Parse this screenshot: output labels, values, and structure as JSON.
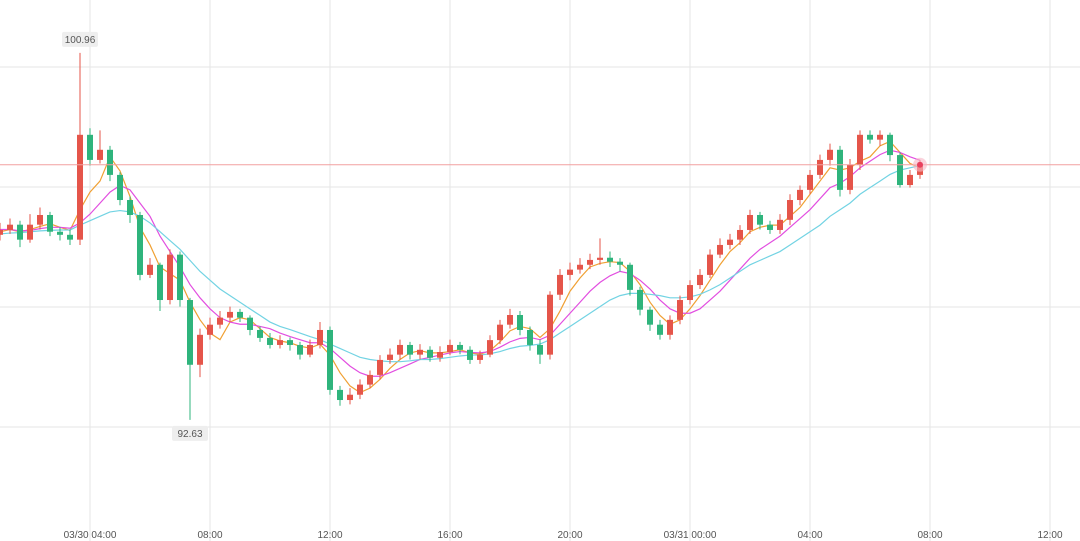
{
  "chart_data": {
    "type": "candlestick",
    "xlim": [
      0,
      108
    ],
    "xticks": [
      {
        "value": 9,
        "label": "03/30 04:00"
      },
      {
        "value": 21,
        "label": "08:00"
      },
      {
        "value": 33,
        "label": "12:00"
      },
      {
        "value": 45,
        "label": "16:00"
      },
      {
        "value": 57,
        "label": "20:00"
      },
      {
        "value": 69,
        "label": "03/31 00:00"
      },
      {
        "value": 81,
        "label": "04:00"
      },
      {
        "value": 93,
        "label": "08:00"
      },
      {
        "value": 105,
        "label": "12:00"
      }
    ],
    "ylim": [
      89.88,
      102.16
    ],
    "grid": true,
    "up_color": "#e5554a",
    "down_color": "#2fb47c",
    "open": [
      96.83,
      96.94,
      97.06,
      96.72,
      97.06,
      97.28,
      96.9,
      96.83,
      96.72,
      99.1,
      98.53,
      98.76,
      98.19,
      97.62,
      97.28,
      95.92,
      96.15,
      95.35,
      96.38,
      95.35,
      93.88,
      94.56,
      94.79,
      94.95,
      95.08,
      94.95,
      94.67,
      94.49,
      94.33,
      94.44,
      94.33,
      94.11,
      94.33,
      94.67,
      93.31,
      93.08,
      93.2,
      93.43,
      93.65,
      93.99,
      94.11,
      94.33,
      94.11,
      94.22,
      94.04,
      94.17,
      94.33,
      94.22,
      93.99,
      94.11,
      94.44,
      94.79,
      95.01,
      94.67,
      94.33,
      94.11,
      95.47,
      95.92,
      96.04,
      96.15,
      96.26,
      96.31,
      96.22,
      96.15,
      95.58,
      95.13,
      94.79,
      94.56,
      94.9,
      95.35,
      95.69,
      95.92,
      96.38,
      96.6,
      96.72,
      96.94,
      97.28,
      97.06,
      96.94,
      97.17,
      97.62,
      97.85,
      98.19,
      98.53,
      98.76,
      97.85,
      98.42,
      99.1,
      98.99,
      99.1,
      98.64,
      97.96,
      98.19
    ],
    "high": [
      97.1,
      97.2,
      97.15,
      97.3,
      97.45,
      97.35,
      97.0,
      96.95,
      100.96,
      99.25,
      99.2,
      98.85,
      98.25,
      97.7,
      97.35,
      96.3,
      96.2,
      96.5,
      96.45,
      95.4,
      94.7,
      94.95,
      95.1,
      95.2,
      95.15,
      95.0,
      94.75,
      94.6,
      94.55,
      94.5,
      94.4,
      94.45,
      94.85,
      94.75,
      93.4,
      93.35,
      93.55,
      93.75,
      94.1,
      94.25,
      94.45,
      94.4,
      94.35,
      94.3,
      94.3,
      94.45,
      94.4,
      94.3,
      94.2,
      94.55,
      94.9,
      95.15,
      95.1,
      94.75,
      94.45,
      95.55,
      96.05,
      96.2,
      96.3,
      96.4,
      96.75,
      96.45,
      96.3,
      96.2,
      95.65,
      95.2,
      94.9,
      95.0,
      95.45,
      95.8,
      96.05,
      96.5,
      96.75,
      96.85,
      97.05,
      97.4,
      97.35,
      97.15,
      97.3,
      97.75,
      97.95,
      98.3,
      98.65,
      98.9,
      98.85,
      98.55,
      99.2,
      99.2,
      99.2,
      99.15,
      98.7,
      98.3,
      98.53
    ],
    "low": [
      96.7,
      96.85,
      96.55,
      96.65,
      96.95,
      96.8,
      96.7,
      96.6,
      96.6,
      98.4,
      98.45,
      98.05,
      97.5,
      97.1,
      95.8,
      95.85,
      95.1,
      95.25,
      95.2,
      92.63,
      93.6,
      94.45,
      94.7,
      94.85,
      94.85,
      94.55,
      94.4,
      94.25,
      94.25,
      94.2,
      94.0,
      94.05,
      94.25,
      93.2,
      92.95,
      92.98,
      93.1,
      93.35,
      93.55,
      93.9,
      94.0,
      94.0,
      94.0,
      93.95,
      93.95,
      94.1,
      94.12,
      93.9,
      93.9,
      94.05,
      94.35,
      94.7,
      94.55,
      94.2,
      93.9,
      94.0,
      95.35,
      95.8,
      95.95,
      96.05,
      96.15,
      96.1,
      96.0,
      95.45,
      95.0,
      94.65,
      94.45,
      94.45,
      94.8,
      95.25,
      95.6,
      95.85,
      96.3,
      96.5,
      96.6,
      96.85,
      96.95,
      96.85,
      96.85,
      97.05,
      97.5,
      97.75,
      98.1,
      98.4,
      97.7,
      97.75,
      98.3,
      98.9,
      98.85,
      98.5,
      97.9,
      97.9,
      98.1
    ],
    "close": [
      96.94,
      97.06,
      96.72,
      97.06,
      97.28,
      96.9,
      96.83,
      96.72,
      99.1,
      98.53,
      98.76,
      98.19,
      97.62,
      97.28,
      95.92,
      96.15,
      95.35,
      96.38,
      95.35,
      93.88,
      94.56,
      94.79,
      94.95,
      95.08,
      94.95,
      94.67,
      94.49,
      94.33,
      94.44,
      94.33,
      94.11,
      94.33,
      94.67,
      93.31,
      93.08,
      93.2,
      93.43,
      93.65,
      93.99,
      94.11,
      94.33,
      94.11,
      94.22,
      94.04,
      94.17,
      94.33,
      94.22,
      93.99,
      94.11,
      94.44,
      94.79,
      95.01,
      94.67,
      94.33,
      94.11,
      95.47,
      95.92,
      96.04,
      96.15,
      96.26,
      96.31,
      96.22,
      96.15,
      95.58,
      95.13,
      94.79,
      94.56,
      94.9,
      95.35,
      95.69,
      95.92,
      96.38,
      96.6,
      96.72,
      96.94,
      97.28,
      97.06,
      96.94,
      97.17,
      97.62,
      97.85,
      98.19,
      98.53,
      98.76,
      97.85,
      98.42,
      99.1,
      98.99,
      99.1,
      98.64,
      97.96,
      98.19,
      98.42
    ],
    "series": [
      {
        "color": "#f0a033",
        "values": [
          96.9,
          96.95,
          96.9,
          96.95,
          97.02,
          97.08,
          97.0,
          96.93,
          97.4,
          97.8,
          98.05,
          98.6,
          98.28,
          97.7,
          97.0,
          96.6,
          96.1,
          95.95,
          95.8,
          95.3,
          94.9,
          94.6,
          94.45,
          94.85,
          94.95,
          94.9,
          94.7,
          94.5,
          94.42,
          94.38,
          94.3,
          94.26,
          94.35,
          94.1,
          93.7,
          93.4,
          93.25,
          93.35,
          93.55,
          93.8,
          94.0,
          94.15,
          94.2,
          94.15,
          94.15,
          94.18,
          94.22,
          94.15,
          94.12,
          94.2,
          94.4,
          94.65,
          94.75,
          94.7,
          94.5,
          94.7,
          95.1,
          95.55,
          95.85,
          96.1,
          96.18,
          96.22,
          96.2,
          96.0,
          95.7,
          95.3,
          95.0,
          94.8,
          94.9,
          95.15,
          95.45,
          95.8,
          96.15,
          96.45,
          96.65,
          96.9,
          97.0,
          97.05,
          97.05,
          97.25,
          97.45,
          97.75,
          98.05,
          98.35,
          98.3,
          98.35,
          98.5,
          98.6,
          98.85,
          98.95,
          98.7,
          98.45,
          98.35
        ]
      },
      {
        "color": "#e24ee0",
        "values": [
          96.95,
          96.95,
          96.92,
          96.93,
          96.97,
          97.0,
          97.0,
          96.98,
          97.1,
          97.3,
          97.55,
          97.8,
          97.95,
          97.85,
          97.55,
          97.25,
          96.8,
          96.45,
          96.1,
          95.7,
          95.4,
          95.15,
          94.95,
          94.85,
          94.8,
          94.8,
          94.75,
          94.7,
          94.6,
          94.52,
          94.45,
          94.38,
          94.38,
          94.25,
          94.05,
          93.85,
          93.7,
          93.62,
          93.62,
          93.7,
          93.8,
          93.9,
          94.0,
          94.05,
          94.1,
          94.15,
          94.18,
          94.16,
          94.15,
          94.18,
          94.28,
          94.4,
          94.48,
          94.5,
          94.45,
          94.55,
          94.8,
          95.05,
          95.3,
          95.55,
          95.75,
          95.9,
          96.0,
          95.95,
          95.8,
          95.6,
          95.35,
          95.15,
          95.05,
          95.05,
          95.15,
          95.35,
          95.55,
          95.8,
          96.05,
          96.3,
          96.5,
          96.65,
          96.8,
          97.0,
          97.2,
          97.4,
          97.65,
          97.9,
          98.0,
          98.15,
          98.35,
          98.5,
          98.65,
          98.75,
          98.7,
          98.6,
          98.52
        ]
      },
      {
        "color": "#72d3e3",
        "values": [
          96.85,
          96.87,
          96.88,
          96.9,
          96.92,
          96.93,
          96.94,
          96.94,
          97.05,
          97.15,
          97.25,
          97.35,
          97.38,
          97.35,
          97.25,
          97.1,
          96.9,
          96.7,
          96.5,
          96.25,
          96.0,
          95.8,
          95.6,
          95.45,
          95.3,
          95.15,
          95.0,
          94.85,
          94.75,
          94.68,
          94.6,
          94.52,
          94.45,
          94.35,
          94.25,
          94.15,
          94.05,
          94.0,
          93.97,
          93.95,
          93.95,
          93.97,
          94.0,
          94.0,
          94.02,
          94.05,
          94.08,
          94.1,
          94.1,
          94.13,
          94.18,
          94.25,
          94.3,
          94.32,
          94.35,
          94.45,
          94.6,
          94.75,
          94.9,
          95.05,
          95.2,
          95.35,
          95.45,
          95.5,
          95.5,
          95.48,
          95.45,
          95.4,
          95.4,
          95.42,
          95.48,
          95.58,
          95.7,
          95.85,
          96.0,
          96.15,
          96.25,
          96.35,
          96.45,
          96.6,
          96.75,
          96.9,
          97.05,
          97.25,
          97.4,
          97.55,
          97.75,
          97.9,
          98.05,
          98.2,
          98.3,
          98.35,
          98.4
        ]
      }
    ]
  }
}
